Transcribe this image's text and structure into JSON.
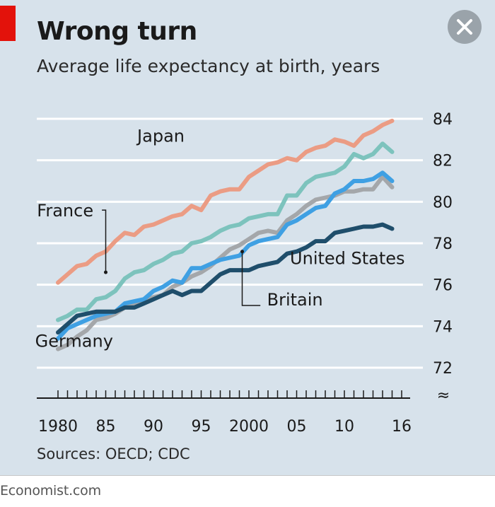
{
  "title": "Wrong turn",
  "subtitle": "Average life expectancy at birth, years",
  "source": "Sources: OECD; CDC",
  "brand": "Economist.com",
  "close_icon": "close-icon",
  "colors": {
    "background": "#d7e2eb",
    "accent": "#e3120b",
    "japan": "#eb9c84",
    "france": "#7dc3bd",
    "germany": "#a4a7aa",
    "britain": "#3fa0e3",
    "united_states": "#1f4e6b"
  },
  "chart_data": {
    "type": "line",
    "title": "Wrong turn",
    "subtitle": "Average life expectancy at birth, years",
    "xlabel": "",
    "ylabel": "",
    "x": [
      1980,
      1981,
      1982,
      1983,
      1984,
      1985,
      1986,
      1987,
      1988,
      1989,
      1990,
      1991,
      1992,
      1993,
      1994,
      1995,
      1996,
      1997,
      1998,
      1999,
      2000,
      2001,
      2002,
      2003,
      2004,
      2005,
      2006,
      2007,
      2008,
      2009,
      2010,
      2011,
      2012,
      2013,
      2014,
      2015
    ],
    "xlim": [
      1980,
      2016
    ],
    "ylim": [
      72,
      84
    ],
    "x_tick_labels": [
      {
        "x": 1980,
        "label": "1980"
      },
      {
        "x": 1985,
        "label": "85"
      },
      {
        "x": 1990,
        "label": "90"
      },
      {
        "x": 1995,
        "label": "95"
      },
      {
        "x": 2000,
        "label": "2000"
      },
      {
        "x": 2005,
        "label": "05"
      },
      {
        "x": 2010,
        "label": "10"
      },
      {
        "x": 2016,
        "label": "16"
      }
    ],
    "y_ticks": [
      72,
      74,
      76,
      78,
      80,
      82,
      84
    ],
    "y_axis_side": "right",
    "grid": true,
    "axis_break": "≈",
    "series": [
      {
        "name": "Japan",
        "key": "japan",
        "label_year": 1988.3,
        "label_value": 82.9,
        "values": [
          76.1,
          76.5,
          76.9,
          77.0,
          77.4,
          77.6,
          78.1,
          78.5,
          78.4,
          78.8,
          78.9,
          79.1,
          79.3,
          79.4,
          79.8,
          79.6,
          80.3,
          80.5,
          80.6,
          80.6,
          81.2,
          81.5,
          81.8,
          81.9,
          82.1,
          82.0,
          82.4,
          82.6,
          82.7,
          83.0,
          82.9,
          82.7,
          83.2,
          83.4,
          83.7,
          83.9
        ]
      },
      {
        "name": "France",
        "key": "france",
        "label_year": 1977.8,
        "label_value": 79.3,
        "pointer": [
          [
            1984.6,
            79.6
          ],
          [
            1985.0,
            79.6
          ],
          [
            1985.0,
            76.6
          ]
        ],
        "values": [
          74.3,
          74.5,
          74.8,
          74.8,
          75.3,
          75.4,
          75.7,
          76.3,
          76.6,
          76.7,
          77.0,
          77.2,
          77.5,
          77.6,
          78.0,
          78.1,
          78.3,
          78.6,
          78.8,
          78.9,
          79.2,
          79.3,
          79.4,
          79.4,
          80.3,
          80.3,
          80.9,
          81.2,
          81.3,
          81.4,
          81.7,
          82.3,
          82.1,
          82.3,
          82.8,
          82.4
        ]
      },
      {
        "name": "Germany",
        "key": "germany",
        "label_year": 1977.6,
        "label_value": 73.0,
        "values": [
          72.9,
          73.1,
          73.5,
          73.8,
          74.3,
          74.4,
          74.6,
          74.9,
          75.1,
          75.2,
          75.4,
          75.5,
          75.9,
          76.1,
          76.4,
          76.6,
          76.9,
          77.3,
          77.7,
          77.9,
          78.2,
          78.5,
          78.6,
          78.5,
          79.1,
          79.4,
          79.8,
          80.1,
          80.2,
          80.3,
          80.5,
          80.5,
          80.6,
          80.6,
          81.2,
          80.7
        ]
      },
      {
        "name": "Britain",
        "key": "britain",
        "label_year": 2001.9,
        "label_value": 75.0,
        "pointer": [
          [
            2001.2,
            75.0
          ],
          [
            1999.3,
            75.0
          ],
          [
            1999.3,
            77.6
          ]
        ],
        "values": [
          73.4,
          73.9,
          74.1,
          74.3,
          74.5,
          74.6,
          74.7,
          75.1,
          75.2,
          75.3,
          75.7,
          75.9,
          76.2,
          76.1,
          76.8,
          76.8,
          77.0,
          77.2,
          77.3,
          77.4,
          77.9,
          78.1,
          78.2,
          78.3,
          78.9,
          79.1,
          79.4,
          79.7,
          79.8,
          80.4,
          80.6,
          81.0,
          81.0,
          81.1,
          81.4,
          81.0
        ]
      },
      {
        "name": "United States",
        "key": "united_states",
        "label_year": 2004.3,
        "label_value": 77.0,
        "values": [
          73.7,
          74.1,
          74.5,
          74.6,
          74.7,
          74.7,
          74.7,
          74.9,
          74.9,
          75.1,
          75.3,
          75.5,
          75.7,
          75.5,
          75.7,
          75.7,
          76.1,
          76.5,
          76.7,
          76.7,
          76.7,
          76.9,
          77.0,
          77.1,
          77.5,
          77.6,
          77.8,
          78.1,
          78.1,
          78.5,
          78.6,
          78.7,
          78.8,
          78.8,
          78.9,
          78.7
        ]
      }
    ]
  }
}
